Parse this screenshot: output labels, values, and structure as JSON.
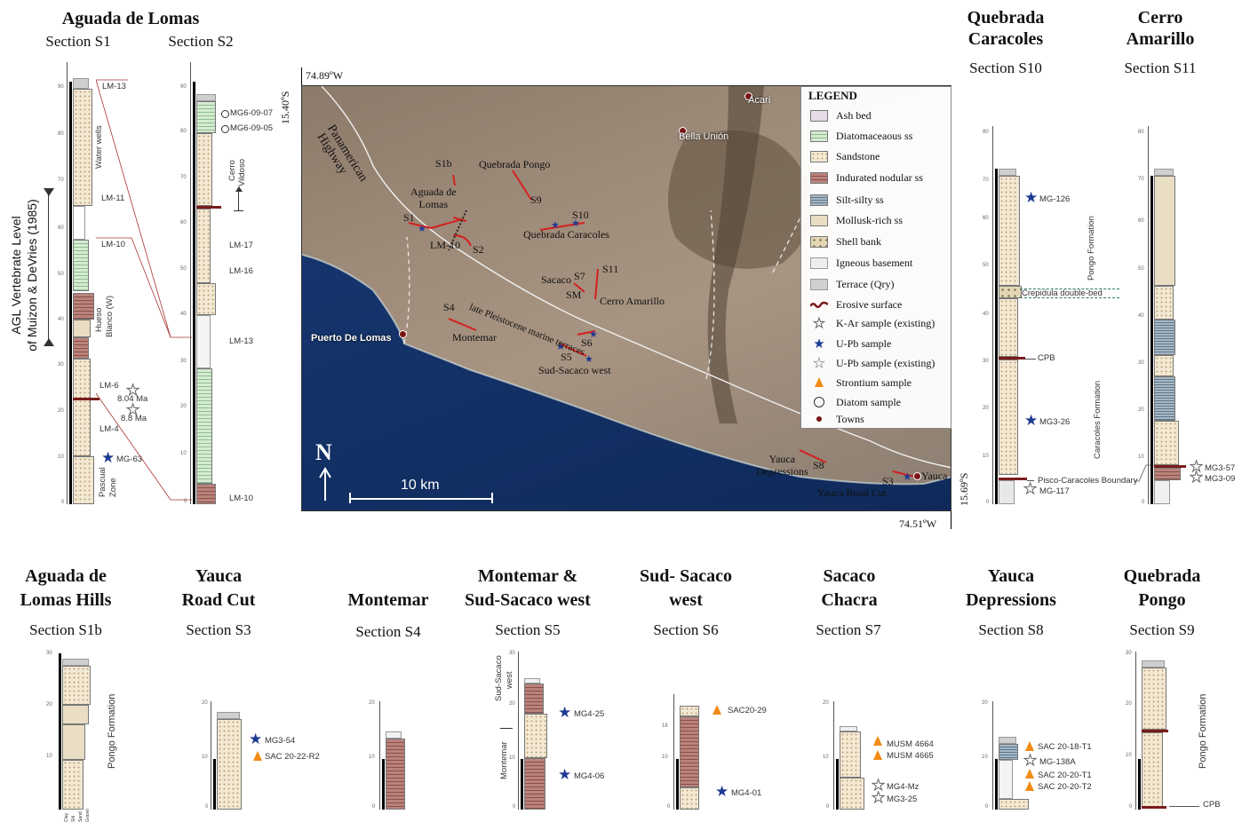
{
  "top_titles": {
    "aguada": "Aguada de Lomas",
    "s1": "Section S1",
    "s2": "Section S2",
    "quebrada_caracoles": [
      "Quebrada",
      "Caracoles"
    ],
    "s10": "Section S10",
    "cerro_amarillo": [
      "Cerro",
      "Amarillo"
    ],
    "s11": "Section S11"
  },
  "agl_label": [
    "AGL Vertebrate Level",
    "of  Muizon & DeVries (1985)"
  ],
  "s1": {
    "ticks": [
      "90",
      "80",
      "70",
      "60",
      "50",
      "40",
      "30",
      "20",
      "10",
      "0"
    ],
    "labels": [
      "LM-13",
      "Water wells",
      "LM-11",
      "LM-10",
      "Hueso",
      "Blanco (W)",
      "LM-6",
      "8.04 Ma",
      "8.8 Ma",
      "LM-4",
      "MG-63",
      "Pascual",
      "Zone"
    ]
  },
  "s2": {
    "ticks": [
      "90",
      "80",
      "70",
      "60",
      "50",
      "40",
      "30",
      "20",
      "10",
      "0"
    ],
    "labels": [
      "MG6-09-07",
      "MG6-09-05",
      "Cerro",
      "Vildoso",
      "LM-17",
      "LM-16",
      "LM-13",
      "LM-10"
    ]
  },
  "map": {
    "coords": {
      "nw_lon": "74.89ºW",
      "nw_lat": "15.40ºS",
      "se_lat": "15.69ºS",
      "se_lon": "74.51ºW"
    },
    "places": {
      "acari": "Acarí",
      "bella_union": "Bella Unión",
      "panamerican": [
        "Panamerican",
        "Highway"
      ],
      "puerto": "Puerto De Lomas",
      "yauca": "Yauca",
      "s1b": "S1b",
      "aguada": [
        "Aguada de",
        "Lomas"
      ],
      "s1": "S1",
      "lm10": "LM-10",
      "s2": "S2",
      "quebrada_pongo": "Quebrada Pongo",
      "s9": "S9",
      "s10": "S10",
      "qcaracoles": "Quebrada Caracoles",
      "sacaco": "Sacaco",
      "s7": "S7",
      "s11": "S11",
      "sm": "SM",
      "cerro_amarillo": "Cerro Amarillo",
      "s4": "S4",
      "montemar": "Montemar",
      "terraces": "late Pleistocene marine terraces",
      "s6": "S6",
      "s5": "S5",
      "sud_sacaco": "Sud-Sacaco west",
      "yauca_dep": [
        "Yauca",
        "Depressions"
      ],
      "s8": "S8",
      "s3": "S3",
      "yauca_road": "Yauca Road Cut",
      "north": "N",
      "scale": "10 km"
    },
    "legend": {
      "title": "LEGEND",
      "items": [
        "Ash bed",
        "Diatomaceaous ss",
        "Sandstone",
        "Indurated nodular ss",
        "Silt-silty ss",
        "Mollusk-rich ss",
        "Shell bank",
        "Igneous basement",
        "Terrace (Qry)",
        "Erosive surface",
        "K-Ar sample (existing)",
        "U-Pb sample",
        "U-Pb sample (existing)",
        "Strontium sample",
        "Diatom sample",
        "Towns"
      ]
    }
  },
  "s10": {
    "ticks": [
      "80",
      "70",
      "60",
      "50",
      "40",
      "30",
      "20",
      "10",
      "0"
    ],
    "labels": [
      "MG-126",
      "Pongo Formation",
      "Crepidula double-bed",
      "CPB",
      "MG3-26",
      "Caracoles Formation",
      "Pisco-Caracoles Boundary",
      "MG-117"
    ]
  },
  "s11": {
    "ticks": [
      "80",
      "70",
      "60",
      "50",
      "40",
      "30",
      "20",
      "10",
      "0"
    ],
    "labels": [
      "MG3-57",
      "MG3-09"
    ]
  },
  "bottom": [
    {
      "title": [
        "Aguada de",
        "Lomas Hills"
      ],
      "section": "Section S1b",
      "labels": [
        "Pongo  Formation",
        "Clay",
        "Silt",
        "Sand",
        "Gravel"
      ],
      "ticks": [
        "30",
        "20",
        "10"
      ]
    },
    {
      "title": [
        "Yauca",
        "Road Cut"
      ],
      "section": "Section S3",
      "labels": [
        "MG3-54",
        "SAC 20-22-R2"
      ],
      "ticks": [
        "20",
        "10",
        "0"
      ]
    },
    {
      "title": [
        "Montemar"
      ],
      "section": "Section S4",
      "labels": [],
      "ticks": [
        "20",
        "10",
        "0"
      ]
    },
    {
      "title": [
        "Montemar &",
        "Sud-Sacaco west"
      ],
      "section": "Section S5",
      "labels": [
        "Sud-Sacaco",
        "west",
        "Montemar",
        "MG4-25",
        "MG4-06"
      ],
      "ticks": [
        "30",
        "20",
        "10",
        "0"
      ]
    },
    {
      "title": [
        "Sud- Sacaco",
        "west"
      ],
      "section": "Section S6",
      "labels": [
        "SAC20-29",
        "MG4-01"
      ],
      "ticks": [
        "18",
        "10",
        "0"
      ]
    },
    {
      "title": [
        "Sacaco",
        "Chacra"
      ],
      "section": "Section S7",
      "labels": [
        "MUSM 4664",
        "MUSM 4665",
        "MG4-Mz",
        "MG3-25"
      ],
      "ticks": [
        "20",
        "10",
        "0"
      ]
    },
    {
      "title": [
        "Yauca",
        "Depressions"
      ],
      "section": "Section S8",
      "labels": [
        "SAC 20-18-T1",
        "MG-138A",
        "SAC 20-20-T1",
        "SAC 20-20-T2"
      ],
      "ticks": [
        "20",
        "10",
        "0"
      ]
    },
    {
      "title": [
        "Quebrada",
        "Pongo"
      ],
      "section": "Section S9",
      "labels": [
        "Pongo  Formation",
        "CPB"
      ],
      "ticks": [
        "30",
        "20",
        "10",
        "0"
      ]
    }
  ],
  "colors": {
    "blue_star": "#1f3a93",
    "strontium": "#f28a14",
    "erosive": "#7a1c1c",
    "town": "#7a1414",
    "section_line": "#d42020"
  }
}
